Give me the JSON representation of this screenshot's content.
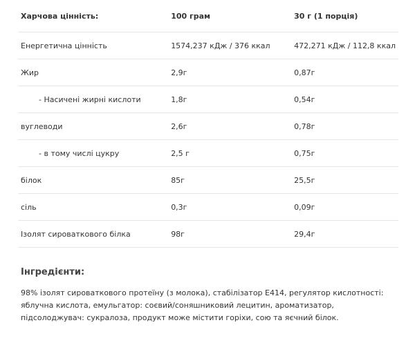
{
  "table": {
    "header": [
      "Харчова цінність:",
      "100 грам",
      "30 г (1 порція)"
    ],
    "rows": [
      [
        "Енергетична цінність",
        "1574,237 кДж / 376 ккал",
        "472,271 кДж / 112,8 ккал"
      ],
      [
        "Жир",
        "2,9г",
        "0,87г"
      ],
      [
        "- Насичені жирні кислоти",
        "1,8г",
        "0,54г"
      ],
      [
        "вуглеводи",
        "2,6г",
        "0,78г"
      ],
      [
        "- в тому числі цукру",
        "2,5 г",
        "0,75г"
      ],
      [
        "білок",
        "85г",
        "25,5г"
      ],
      [
        "сіль",
        "0,3г",
        "0,09г"
      ],
      [
        "Ізолят сироваткового білка",
        "98г",
        "29,4г"
      ]
    ]
  },
  "ingredients": {
    "title": "Інгредієнти:",
    "text": "98% ізолят сироваткового протеїну (з молока), стабілізатор E414, регулятор кислотності: яблучна кислота, емульгатор: соєвий/соняшниковий лецитин, ароматизатор, підсолоджувач: сукралоза, продукт може містити горіхи, сою та яєчний білок."
  }
}
